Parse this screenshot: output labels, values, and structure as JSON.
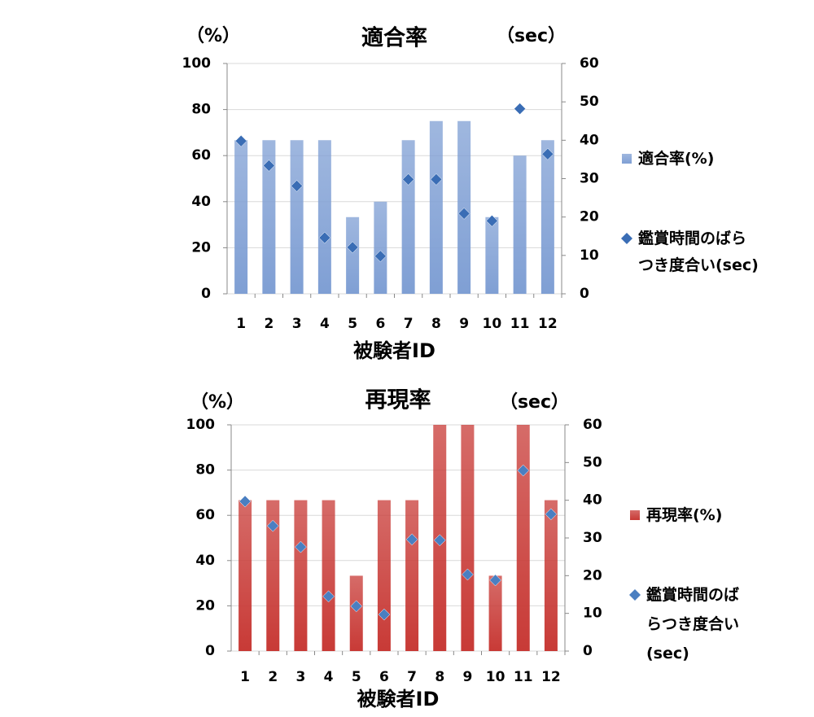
{
  "chart_data": [
    {
      "type": "bar",
      "title": "適合率",
      "y_label": "（%）",
      "y2_label": "（sec）",
      "x_label": "被験者ID",
      "categories": [
        "1",
        "2",
        "3",
        "4",
        "5",
        "6",
        "7",
        "8",
        "9",
        "10",
        "11",
        "12"
      ],
      "ylim": [
        0,
        100
      ],
      "yticks": [
        0,
        20,
        40,
        60,
        80,
        100
      ],
      "y2lim": [
        0,
        60
      ],
      "y2ticks": [
        0,
        10,
        20,
        30,
        40,
        50,
        60
      ],
      "grid": true,
      "series": [
        {
          "name": "適合率(%)",
          "type": "bar",
          "color": "#7f9fd4",
          "values": [
            66.7,
            66.7,
            66.7,
            66.7,
            33.3,
            40,
            66.7,
            75,
            75,
            33.3,
            60,
            66.7
          ]
        },
        {
          "name": "鑑賞時間のばらつき度合い(sec)",
          "type": "scatter",
          "marker": "diamond",
          "axis": "y2",
          "color": "#3a6db5",
          "values": [
            39.8,
            33.4,
            28.1,
            14.6,
            12.1,
            9.8,
            29.8,
            29.8,
            20.9,
            19.0,
            48.2,
            36.4
          ]
        }
      ]
    },
    {
      "type": "bar",
      "title": "再現率",
      "y_label": "（%）",
      "y2_label": "（sec）",
      "x_label": "被験者ID",
      "categories": [
        "1",
        "2",
        "3",
        "4",
        "5",
        "6",
        "7",
        "8",
        "9",
        "10",
        "11",
        "12"
      ],
      "ylim": [
        0,
        100
      ],
      "yticks": [
        0,
        20,
        40,
        60,
        80,
        100
      ],
      "y2lim": [
        0,
        60
      ],
      "y2ticks": [
        0,
        10,
        20,
        30,
        40,
        50,
        60
      ],
      "grid": true,
      "series": [
        {
          "name": "再現率(%)",
          "type": "bar",
          "color": "#c83a36",
          "values": [
            66.7,
            66.7,
            66.7,
            66.7,
            33.3,
            66.7,
            66.7,
            100,
            100,
            33.3,
            100,
            66.7
          ]
        },
        {
          "name": "鑑賞時間のばらつき度合い(sec)",
          "type": "scatter",
          "marker": "diamond",
          "axis": "y2",
          "color": "#4a7fc1",
          "values": [
            39.7,
            33.2,
            27.6,
            14.5,
            11.9,
            9.7,
            29.6,
            29.4,
            20.3,
            18.8,
            47.9,
            36.3
          ]
        }
      ]
    }
  ]
}
